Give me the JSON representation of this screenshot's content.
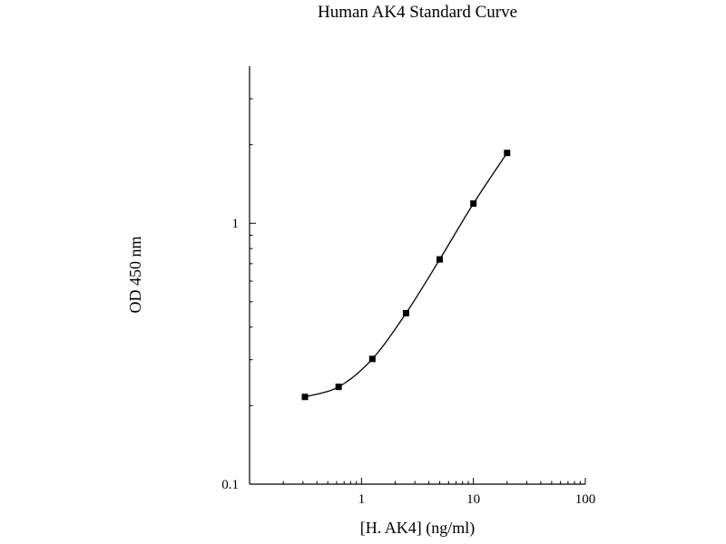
{
  "chart_data": {
    "type": "scatter",
    "title": "Human AK4 Standard Curve",
    "xlabel": "[H. AK4] (ng/ml)",
    "ylabel": "OD 450 nm",
    "x_scale": "log",
    "y_scale": "log",
    "xlim": [
      0.1,
      100
    ],
    "ylim": [
      0.1,
      4
    ],
    "x_ticks": [
      {
        "value": 1,
        "label": "1"
      },
      {
        "value": 10,
        "label": "10"
      },
      {
        "value": 100,
        "label": "100"
      }
    ],
    "y_ticks": [
      {
        "value": 0.1,
        "label": "0.1"
      },
      {
        "value": 1,
        "label": "1"
      }
    ],
    "grid": false,
    "series": [
      {
        "x": [
          0.3125,
          0.625,
          1.25,
          2.5,
          5,
          10,
          20
        ],
        "y": [
          0.216,
          0.236,
          0.302,
          0.452,
          0.727,
          1.19,
          1.86
        ]
      }
    ]
  }
}
